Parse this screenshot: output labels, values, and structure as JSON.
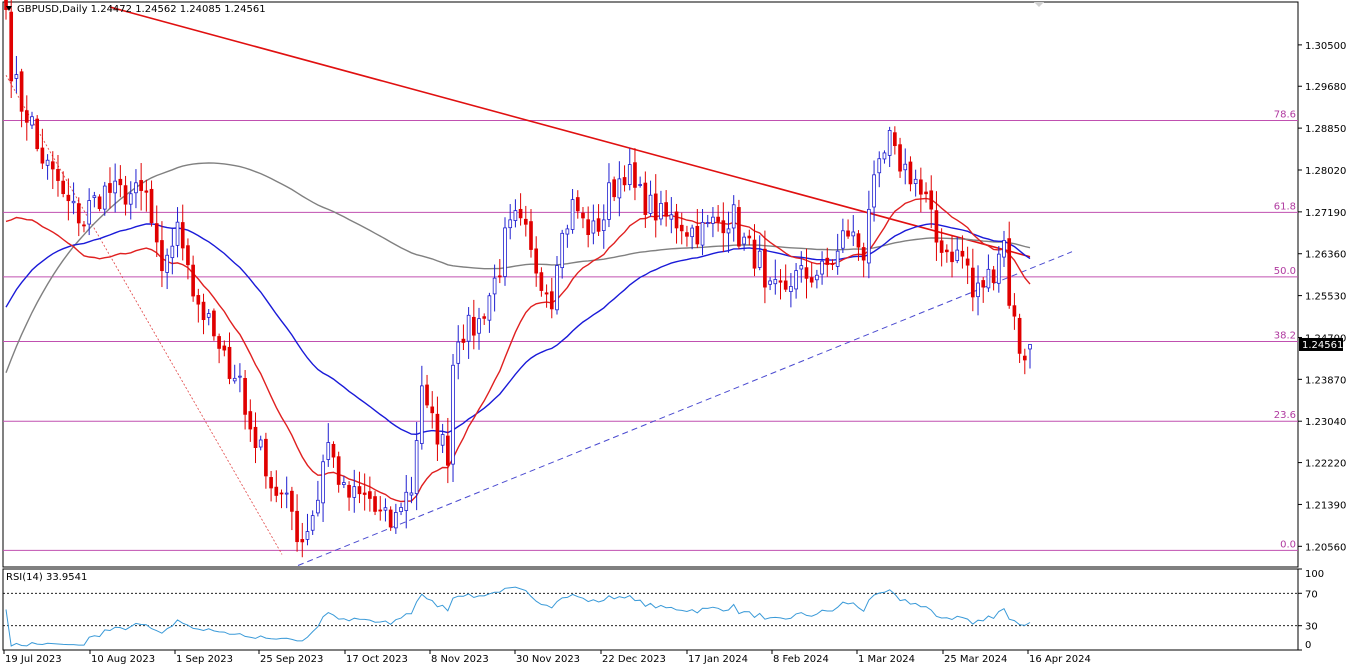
{
  "header": {
    "symbol_line": "GBPUSD,Daily  1.24472 1.24562 1.24085 1.24561",
    "rsi_label": "RSI(14) 33.9541"
  },
  "price_axis": {
    "ticks": [
      "1.30500",
      "1.29680",
      "1.28850",
      "1.28020",
      "1.27190",
      "1.26360",
      "1.25530",
      "1.24700",
      "1.23870",
      "1.23040",
      "1.22220",
      "1.21390",
      "1.20560"
    ],
    "current_price": "1.24561",
    "range": [
      1.2015,
      1.3135
    ]
  },
  "rsi_axis": {
    "ticks": [
      "100",
      "70",
      "30",
      "0"
    ],
    "levels": [
      70,
      30
    ]
  },
  "date_axis": {
    "labels": [
      "19 Jul 2023",
      "10 Aug 2023",
      "1 Sep 2023",
      "25 Sep 2023",
      "17 Oct 2023",
      "8 Nov 2023",
      "30 Nov 2023",
      "22 Dec 2023",
      "17 Jan 2024",
      "8 Feb 2024",
      "1 Mar 2024",
      "25 Mar 2024",
      "16 Apr 2024"
    ]
  },
  "fib_levels": [
    {
      "label": "78.6",
      "price": 1.29
    },
    {
      "label": "61.8",
      "price": 1.2718
    },
    {
      "label": "50.0",
      "price": 1.259
    },
    {
      "label": "38.2",
      "price": 1.2462
    },
    {
      "label": "23.6",
      "price": 1.2304
    },
    {
      "label": "0.0",
      "price": 1.2048
    }
  ],
  "colors": {
    "bull": "#1f1fd0",
    "bear": "#e00000",
    "ma_fast": "#e02020",
    "ma_mid": "#1a1ad8",
    "ma_slow": "#808080",
    "fib": "#c050b0",
    "trendline": "#e01010",
    "dash_support": "#4a4ad0",
    "rsi_line": "#3a9ad8"
  },
  "chart_data": {
    "type": "candlestick",
    "title": "",
    "series_name": "GBPUSD,Daily",
    "ohlc_last": {
      "open": 1.24472,
      "high": 1.24562,
      "low": 1.24085,
      "close": 1.24561
    },
    "ylim": [
      1.2015,
      1.3135
    ],
    "anchors": [
      {
        "date": "2023-07-14",
        "close": 1.312
      },
      {
        "date": "2023-07-19",
        "close": 1.293
      },
      {
        "date": "2023-07-27",
        "close": 1.279
      },
      {
        "date": "2023-08-04",
        "close": 1.27
      },
      {
        "date": "2023-08-10",
        "close": 1.276
      },
      {
        "date": "2023-08-22",
        "close": 1.275
      },
      {
        "date": "2023-08-25",
        "close": 1.258
      },
      {
        "date": "2023-08-30",
        "close": 1.268
      },
      {
        "date": "2023-09-08",
        "close": 1.247
      },
      {
        "date": "2023-09-15",
        "close": 1.239
      },
      {
        "date": "2023-09-22",
        "close": 1.222
      },
      {
        "date": "2023-10-03",
        "close": 1.207
      },
      {
        "date": "2023-10-10",
        "close": 1.226
      },
      {
        "date": "2023-10-13",
        "close": 1.216
      },
      {
        "date": "2023-10-20",
        "close": 1.215
      },
      {
        "date": "2023-10-26",
        "close": 1.21
      },
      {
        "date": "2023-11-01",
        "close": 1.217
      },
      {
        "date": "2023-11-03",
        "close": 1.238
      },
      {
        "date": "2023-11-10",
        "close": 1.224
      },
      {
        "date": "2023-11-14",
        "close": 1.248
      },
      {
        "date": "2023-11-20",
        "close": 1.25
      },
      {
        "date": "2023-11-24",
        "close": 1.261
      },
      {
        "date": "2023-11-29",
        "close": 1.27
      },
      {
        "date": "2023-12-04",
        "close": 1.263
      },
      {
        "date": "2023-12-08",
        "close": 1.255
      },
      {
        "date": "2023-12-14",
        "close": 1.273
      },
      {
        "date": "2023-12-20",
        "close": 1.268
      },
      {
        "date": "2023-12-28",
        "close": 1.28
      },
      {
        "date": "2024-01-05",
        "close": 1.272
      },
      {
        "date": "2024-01-17",
        "close": 1.268
      },
      {
        "date": "2024-01-26",
        "close": 1.271
      },
      {
        "date": "2024-02-02",
        "close": 1.262
      },
      {
        "date": "2024-02-05",
        "close": 1.255
      },
      {
        "date": "2024-02-13",
        "close": 1.259
      },
      {
        "date": "2024-02-20",
        "close": 1.26
      },
      {
        "date": "2024-02-27",
        "close": 1.268
      },
      {
        "date": "2024-03-01",
        "close": 1.264
      },
      {
        "date": "2024-03-08",
        "close": 1.286
      },
      {
        "date": "2024-03-19",
        "close": 1.274
      },
      {
        "date": "2024-03-21",
        "close": 1.266
      },
      {
        "date": "2024-03-28",
        "close": 1.263
      },
      {
        "date": "2024-04-01",
        "close": 1.255
      },
      {
        "date": "2024-04-09",
        "close": 1.266
      },
      {
        "date": "2024-04-10",
        "close": 1.255
      },
      {
        "date": "2024-04-12",
        "close": 1.245
      },
      {
        "date": "2024-04-15",
        "close": 1.244
      },
      {
        "date": "2024-04-16",
        "close": 1.24561
      }
    ],
    "moving_averages": [
      "fast",
      "medium",
      "slow"
    ],
    "rsi_last": 33.9541,
    "rsi_ylim": [
      0,
      100
    ]
  }
}
